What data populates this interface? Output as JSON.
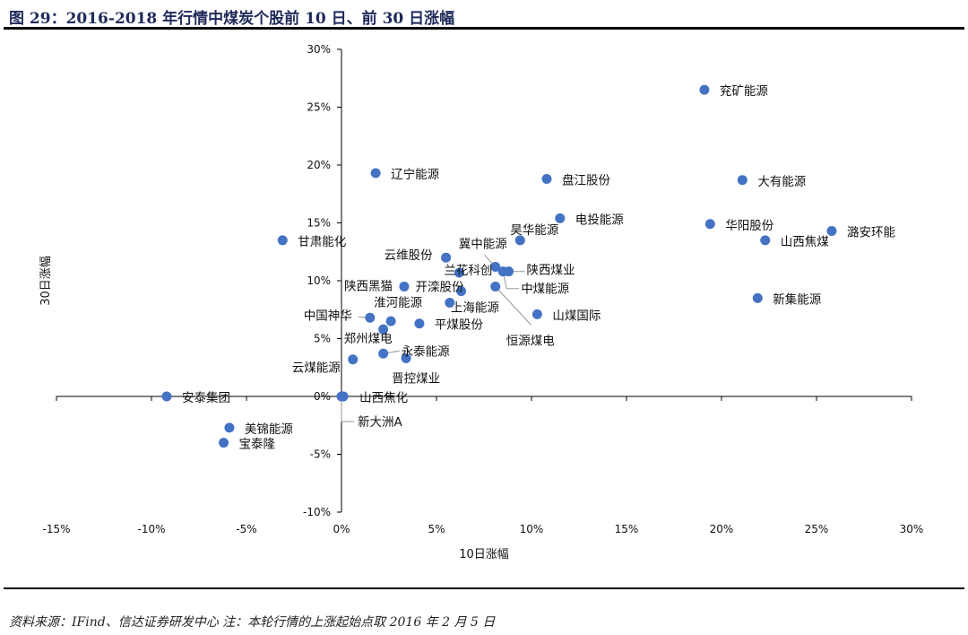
{
  "title": "图 29：2016-2018 年行情中煤炭个股前 10 日、前 30 日涨幅",
  "footnote": "资料来源：IFind、信达证券研发中心 注：本轮行情的上涨起始点取 2016 年 2 月 5 日",
  "colors": {
    "point": "#4472c4",
    "axis": "#000000",
    "leader": "#a6a6a6"
  },
  "chart_data": {
    "type": "scatter",
    "title": "",
    "xlabel": "10日涨幅",
    "ylabel": "30日涨幅",
    "xlim": [
      -15,
      30
    ],
    "ylim": [
      -10,
      30
    ],
    "x_ticks": [
      -15,
      -10,
      -5,
      0,
      5,
      10,
      15,
      20,
      25,
      30
    ],
    "y_ticks": [
      -10,
      -5,
      0,
      5,
      10,
      15,
      20,
      25,
      30
    ],
    "x_tick_labels": [
      "-15%",
      "-10%",
      "-5%",
      "0%",
      "5%",
      "10%",
      "15%",
      "20%",
      "25%",
      "30%"
    ],
    "y_tick_labels": [
      "-10%",
      "-5%",
      "0%",
      "5%",
      "10%",
      "15%",
      "20%",
      "25%",
      "30%"
    ],
    "unit": "%",
    "grid": false,
    "points": [
      {
        "name": "兖矿能源",
        "x": 19.1,
        "y": 26.5
      },
      {
        "name": "辽宁能源",
        "x": 1.8,
        "y": 19.3
      },
      {
        "name": "盘江股份",
        "x": 10.8,
        "y": 18.8
      },
      {
        "name": "大有能源",
        "x": 21.1,
        "y": 18.7
      },
      {
        "name": "电投能源",
        "x": 11.5,
        "y": 15.4
      },
      {
        "name": "华阳股份",
        "x": 19.4,
        "y": 14.9
      },
      {
        "name": "潞安环能",
        "x": 25.8,
        "y": 14.3
      },
      {
        "name": "山西焦煤",
        "x": 22.3,
        "y": 13.5
      },
      {
        "name": "甘肃能化",
        "x": -3.1,
        "y": 13.5
      },
      {
        "name": "昊华能源",
        "x": 9.4,
        "y": 13.5
      },
      {
        "name": "云维股份",
        "x": 5.5,
        "y": 12.0
      },
      {
        "name": "冀中能源",
        "x": 8.1,
        "y": 11.2
      },
      {
        "name": "兰花科创",
        "x": 6.2,
        "y": 10.7
      },
      {
        "name": "中煤能源",
        "x": 8.5,
        "y": 10.8
      },
      {
        "name": "陕西煤业",
        "x": 8.8,
        "y": 10.8
      },
      {
        "name": "恒源煤电",
        "x": 8.1,
        "y": 9.5
      },
      {
        "name": "开滦股份",
        "x": 6.3,
        "y": 9.1
      },
      {
        "name": "陕西黑猫",
        "x": 3.3,
        "y": 9.5
      },
      {
        "name": "上海能源",
        "x": 5.7,
        "y": 8.1
      },
      {
        "name": "山煤国际",
        "x": 10.3,
        "y": 7.1
      },
      {
        "name": "新集能源",
        "x": 21.9,
        "y": 8.5
      },
      {
        "name": "中国神华",
        "x": 1.5,
        "y": 6.8
      },
      {
        "name": "淮河能源",
        "x": 2.6,
        "y": 6.5
      },
      {
        "name": "平煤股份",
        "x": 4.1,
        "y": 6.3
      },
      {
        "name": "郑州煤电",
        "x": 2.2,
        "y": 5.8
      },
      {
        "name": "永泰能源",
        "x": 2.2,
        "y": 3.7
      },
      {
        "name": "晋控煤业",
        "x": 3.4,
        "y": 3.3
      },
      {
        "name": "云煤能源",
        "x": 0.6,
        "y": 3.2
      },
      {
        "name": "安泰集团",
        "x": -9.2,
        "y": 0.0
      },
      {
        "name": "山西焦化",
        "x": 0.1,
        "y": 0.0
      },
      {
        "name": "新大洲A",
        "x": 0.0,
        "y": 0.0
      },
      {
        "name": "美锦能源",
        "x": -5.9,
        "y": -2.7
      },
      {
        "name": "宝泰隆",
        "x": -6.2,
        "y": -4.0
      }
    ]
  }
}
